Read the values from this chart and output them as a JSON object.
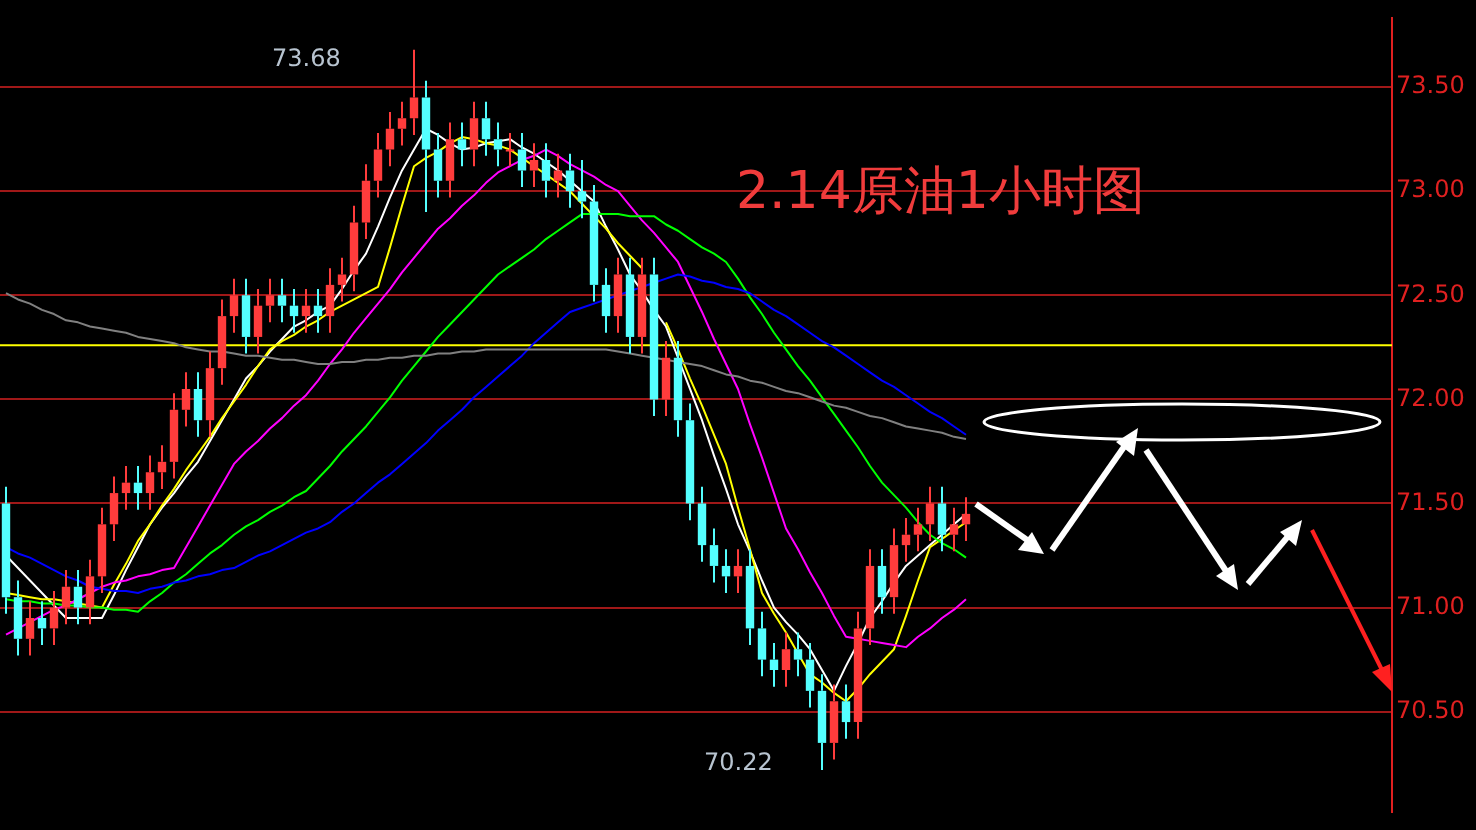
{
  "chart_data": {
    "type": "candlestick",
    "title": "2.14原油1小时图",
    "categories": [
      null,
      null,
      null,
      null,
      null,
      null,
      null,
      null,
      null,
      null,
      null,
      null,
      null,
      null,
      null,
      null,
      null,
      null,
      null,
      null,
      null,
      null,
      null,
      null,
      null,
      null,
      null,
      null,
      null,
      null,
      null,
      null,
      null,
      null,
      null,
      null,
      null,
      null,
      null,
      null,
      null,
      null,
      null,
      null,
      null,
      null,
      null,
      null,
      null,
      null,
      null,
      null,
      null,
      null,
      null,
      null,
      null,
      null,
      null,
      null,
      null,
      null,
      null,
      null,
      null,
      null,
      null,
      null,
      null,
      null,
      null,
      null,
      null,
      null,
      null,
      null,
      null,
      null,
      null,
      null,
      null
    ],
    "ylim": [
      70.02,
      73.83
    ],
    "yticks": [
      {
        "value": 70.5,
        "label": "70.50"
      },
      {
        "value": 71,
        "label": "71.00"
      },
      {
        "value": 71.5,
        "label": "71.50"
      },
      {
        "value": 72,
        "label": "72.00"
      },
      {
        "value": 72.5,
        "label": "72.50"
      },
      {
        "value": 73,
        "label": "73.00"
      },
      {
        "value": 73.5,
        "label": "73.50"
      }
    ],
    "grid": "y",
    "tick_labels": "y",
    "annotations": [
      "73.68",
      "70.22"
    ],
    "ref_lines": [
      {
        "axis": "y",
        "value": 72.26,
        "color": "#ffff00"
      }
    ],
    "ohlc": [
      [
        71.5,
        71.58,
        70.97,
        71.05
      ],
      [
        71.05,
        71.13,
        70.77,
        70.85
      ],
      [
        70.85,
        71.03,
        70.77,
        70.95
      ],
      [
        70.95,
        71.03,
        70.82,
        70.9
      ],
      [
        70.9,
        71.08,
        70.82,
        71.0
      ],
      [
        71.0,
        71.18,
        70.92,
        71.1
      ],
      [
        71.1,
        71.18,
        70.92,
        71.0
      ],
      [
        71.0,
        71.23,
        70.92,
        71.15
      ],
      [
        71.15,
        71.48,
        71.07,
        71.4
      ],
      [
        71.4,
        71.63,
        71.32,
        71.55
      ],
      [
        71.55,
        71.68,
        71.47,
        71.6
      ],
      [
        71.6,
        71.68,
        71.47,
        71.55
      ],
      [
        71.55,
        71.73,
        71.47,
        71.65
      ],
      [
        71.65,
        71.78,
        71.57,
        71.7
      ],
      [
        71.7,
        72.03,
        71.62,
        71.95
      ],
      [
        71.95,
        72.13,
        71.87,
        72.05
      ],
      [
        72.05,
        72.13,
        71.82,
        71.9
      ],
      [
        71.9,
        72.23,
        71.82,
        72.15
      ],
      [
        72.15,
        72.48,
        72.07,
        72.4
      ],
      [
        72.4,
        72.58,
        72.32,
        72.5
      ],
      [
        72.5,
        72.58,
        72.22,
        72.3
      ],
      [
        72.3,
        72.53,
        72.22,
        72.45
      ],
      [
        72.45,
        72.58,
        72.37,
        72.5
      ],
      [
        72.5,
        72.58,
        72.37,
        72.45
      ],
      [
        72.45,
        72.53,
        72.32,
        72.4
      ],
      [
        72.4,
        72.53,
        72.32,
        72.45
      ],
      [
        72.45,
        72.53,
        72.32,
        72.4
      ],
      [
        72.4,
        72.63,
        72.32,
        72.55
      ],
      [
        72.55,
        72.68,
        72.47,
        72.6
      ],
      [
        72.6,
        72.93,
        72.52,
        72.85
      ],
      [
        72.85,
        73.13,
        72.77,
        73.05
      ],
      [
        73.05,
        73.28,
        72.97,
        73.2
      ],
      [
        73.2,
        73.38,
        73.12,
        73.3
      ],
      [
        73.3,
        73.43,
        73.22,
        73.35
      ],
      [
        73.35,
        73.68,
        73.27,
        73.45
      ],
      [
        73.45,
        73.53,
        72.9,
        73.2
      ],
      [
        73.2,
        73.28,
        72.97,
        73.05
      ],
      [
        73.05,
        73.33,
        72.97,
        73.25
      ],
      [
        73.25,
        73.33,
        73.12,
        73.2
      ],
      [
        73.2,
        73.43,
        73.12,
        73.35
      ],
      [
        73.35,
        73.43,
        73.17,
        73.25
      ],
      [
        73.25,
        73.33,
        73.12,
        73.2
      ],
      [
        73.2,
        73.28,
        73.12,
        73.2
      ],
      [
        73.2,
        73.28,
        73.02,
        73.1
      ],
      [
        73.1,
        73.23,
        73.02,
        73.15
      ],
      [
        73.15,
        73.23,
        72.97,
        73.05
      ],
      [
        73.05,
        73.18,
        72.97,
        73.1
      ],
      [
        73.1,
        73.18,
        72.92,
        73.0
      ],
      [
        73.0,
        73.15,
        72.87,
        72.95
      ],
      [
        72.95,
        73.03,
        72.47,
        72.55
      ],
      [
        72.55,
        72.63,
        72.32,
        72.4
      ],
      [
        72.4,
        72.68,
        72.32,
        72.6
      ],
      [
        72.6,
        72.68,
        72.22,
        72.3
      ],
      [
        72.3,
        72.68,
        72.22,
        72.6
      ],
      [
        72.6,
        72.68,
        71.92,
        72.0
      ],
      [
        72.0,
        72.28,
        71.92,
        72.2
      ],
      [
        72.2,
        72.28,
        71.82,
        71.9
      ],
      [
        71.9,
        71.98,
        71.42,
        71.5
      ],
      [
        71.5,
        71.58,
        71.22,
        71.3
      ],
      [
        71.3,
        71.38,
        71.12,
        71.2
      ],
      [
        71.2,
        71.28,
        71.07,
        71.15
      ],
      [
        71.15,
        71.28,
        71.07,
        71.2
      ],
      [
        71.2,
        71.28,
        70.82,
        70.9
      ],
      [
        70.9,
        70.98,
        70.67,
        70.75
      ],
      [
        70.75,
        70.83,
        70.62,
        70.7
      ],
      [
        70.7,
        70.88,
        70.62,
        70.8
      ],
      [
        70.8,
        70.88,
        70.67,
        70.75
      ],
      [
        70.75,
        70.83,
        70.52,
        70.6
      ],
      [
        70.6,
        70.68,
        70.22,
        70.35
      ],
      [
        70.35,
        70.63,
        70.27,
        70.55
      ],
      [
        70.55,
        70.63,
        70.37,
        70.45
      ],
      [
        70.45,
        70.98,
        70.37,
        70.9
      ],
      [
        70.9,
        71.28,
        70.82,
        71.2
      ],
      [
        71.2,
        71.28,
        70.97,
        71.05
      ],
      [
        71.05,
        71.38,
        70.97,
        71.3
      ],
      [
        71.3,
        71.43,
        71.22,
        71.35
      ],
      [
        71.35,
        71.48,
        71.27,
        71.4
      ],
      [
        71.4,
        71.58,
        71.32,
        71.5
      ],
      [
        71.5,
        71.58,
        71.27,
        71.35
      ],
      [
        71.35,
        71.48,
        71.27,
        71.4
      ],
      [
        71.4,
        71.53,
        71.32,
        71.45
      ]
    ],
    "colors": [
      "#54ffff",
      "#54ffff",
      "#ff3c3c",
      "#54ffff",
      "#ff3c3c",
      "#ff3c3c",
      "#54ffff",
      "#ff3c3c",
      "#ff3c3c",
      "#ff3c3c",
      "#ff3c3c",
      "#54ffff",
      "#ff3c3c",
      "#ff3c3c",
      "#ff3c3c",
      "#ff3c3c",
      "#54ffff",
      "#ff3c3c",
      "#ff3c3c",
      "#ff3c3c",
      "#54ffff",
      "#ff3c3c",
      "#ff3c3c",
      "#54ffff",
      "#54ffff",
      "#ff3c3c",
      "#54ffff",
      "#ff3c3c",
      "#ff3c3c",
      "#ff3c3c",
      "#ff3c3c",
      "#ff3c3c",
      "#ff3c3c",
      "#ff3c3c",
      "#ff3c3c",
      "#54ffff",
      "#54ffff",
      "#ff3c3c",
      "#54ffff",
      "#ff3c3c",
      "#54ffff",
      "#54ffff",
      "#ff3c3c",
      "#54ffff",
      "#ff3c3c",
      "#54ffff",
      "#ff3c3c",
      "#54ffff",
      "#54ffff",
      "#54ffff",
      "#54ffff",
      "#ff3c3c",
      "#54ffff",
      "#ff3c3c",
      "#54ffff",
      "#ff3c3c",
      "#54ffff",
      "#54ffff",
      "#54ffff",
      "#54ffff",
      "#54ffff",
      "#ff3c3c",
      "#54ffff",
      "#54ffff",
      "#54ffff",
      "#ff3c3c",
      "#54ffff",
      "#54ffff",
      "#54ffff",
      "#ff3c3c",
      "#54ffff",
      "#ff3c3c",
      "#ff3c3c",
      "#54ffff",
      "#ff3c3c",
      "#ff3c3c",
      "#ff3c3c",
      "#ff3c3c",
      "#54ffff",
      "#ff3c3c",
      "#ff3c3c"
    ],
    "series": [
      {
        "type": "line",
        "color": "#808080",
        "values": [
          72.51,
          72.48,
          72.46,
          72.43,
          72.41,
          72.38,
          72.37,
          72.35,
          72.34,
          72.33,
          72.32,
          72.3,
          72.29,
          72.28,
          72.27,
          72.25,
          72.24,
          72.23,
          72.23,
          72.22,
          72.21,
          72.21,
          72.2,
          72.19,
          72.19,
          72.18,
          72.17,
          72.17,
          72.18,
          72.18,
          72.19,
          72.19,
          72.2,
          72.2,
          72.21,
          72.21,
          72.22,
          72.22,
          72.23,
          72.23,
          72.24,
          72.24,
          72.24,
          72.24,
          72.24,
          72.24,
          72.24,
          72.24,
          72.24,
          72.24,
          72.24,
          72.23,
          72.22,
          72.21,
          72.2,
          72.19,
          72.18,
          72.17,
          72.16,
          72.14,
          72.12,
          72.11,
          72.09,
          72.08,
          72.06,
          72.04,
          72.03,
          72.01,
          71.99,
          71.97,
          71.96,
          71.94,
          71.92,
          71.91,
          71.89,
          71.87,
          71.86,
          71.85,
          71.84,
          71.82,
          71.81
        ]
      },
      {
        "type": "line",
        "color": "#0000ff",
        "values": [
          71.29,
          71.26,
          71.24,
          71.21,
          71.18,
          71.15,
          71.13,
          71.1,
          71.09,
          71.08,
          71.08,
          71.07,
          71.09,
          71.1,
          71.12,
          71.13,
          71.15,
          71.16,
          71.18,
          71.19,
          71.22,
          71.25,
          71.27,
          71.3,
          71.33,
          71.36,
          71.38,
          71.41,
          71.46,
          71.5,
          71.55,
          71.6,
          71.64,
          71.69,
          71.74,
          71.79,
          71.85,
          71.9,
          71.95,
          72.01,
          72.06,
          72.11,
          72.16,
          72.21,
          72.27,
          72.32,
          72.37,
          72.42,
          72.44,
          72.46,
          72.48,
          72.5,
          72.52,
          72.54,
          72.56,
          72.58,
          72.6,
          72.59,
          72.57,
          72.56,
          72.54,
          72.53,
          72.51,
          72.47,
          72.43,
          72.4,
          72.36,
          72.32,
          72.28,
          72.25,
          72.21,
          72.17,
          72.13,
          72.09,
          72.06,
          72.02,
          71.98,
          71.94,
          71.91,
          71.87,
          71.83
        ]
      },
      {
        "type": "line",
        "color": "#00ff00",
        "values": [
          71.04,
          71.03,
          71.03,
          71.02,
          71.02,
          71.01,
          71.01,
          71.0,
          71.0,
          70.99,
          70.99,
          70.98,
          71.03,
          71.07,
          71.12,
          71.16,
          71.21,
          71.26,
          71.3,
          71.35,
          71.39,
          71.42,
          71.46,
          71.49,
          71.53,
          71.56,
          71.62,
          71.68,
          71.75,
          71.81,
          71.87,
          71.94,
          72.01,
          72.09,
          72.16,
          72.23,
          72.3,
          72.36,
          72.42,
          72.48,
          72.54,
          72.6,
          72.64,
          72.68,
          72.72,
          72.77,
          72.81,
          72.85,
          72.89,
          72.89,
          72.89,
          72.89,
          72.88,
          72.88,
          72.88,
          72.84,
          72.81,
          72.77,
          72.73,
          72.7,
          72.66,
          72.58,
          72.49,
          72.41,
          72.32,
          72.24,
          72.16,
          72.09,
          72.01,
          71.93,
          71.85,
          71.77,
          71.68,
          71.6,
          71.54,
          71.48,
          71.41,
          71.35,
          71.31,
          71.28,
          71.24
        ]
      },
      {
        "type": "line",
        "color": "#ff00ff",
        "values": [
          70.87,
          70.9,
          70.93,
          70.96,
          70.99,
          71.01,
          71.04,
          71.07,
          71.1,
          71.12,
          71.13,
          71.15,
          71.16,
          71.18,
          71.19,
          71.29,
          71.39,
          71.49,
          71.59,
          71.69,
          71.75,
          71.8,
          71.86,
          71.91,
          71.97,
          72.02,
          72.09,
          72.17,
          72.24,
          72.32,
          72.39,
          72.46,
          72.53,
          72.61,
          72.68,
          72.75,
          72.82,
          72.87,
          72.93,
          72.98,
          73.04,
          73.09,
          73.12,
          73.15,
          73.17,
          73.2,
          73.17,
          73.13,
          73.1,
          73.07,
          73.03,
          73.0,
          72.93,
          72.86,
          72.8,
          72.73,
          72.66,
          72.54,
          72.42,
          72.29,
          72.17,
          72.05,
          71.88,
          71.72,
          71.55,
          71.38,
          71.28,
          71.17,
          71.07,
          70.96,
          70.86,
          70.85,
          70.84,
          70.83,
          70.82,
          70.81,
          70.86,
          70.9,
          70.95,
          70.99,
          71.04
        ]
      },
      {
        "type": "line",
        "color": "#ffff00",
        "values": [
          71.07,
          71.06,
          71.05,
          71.04,
          71.04,
          71.03,
          71.02,
          71.01,
          71.0,
          71.11,
          71.21,
          71.32,
          71.4,
          71.49,
          71.57,
          71.66,
          71.74,
          71.82,
          71.91,
          71.99,
          72.07,
          72.16,
          72.24,
          72.28,
          72.31,
          72.35,
          72.38,
          72.42,
          72.45,
          72.48,
          72.51,
          72.54,
          72.73,
          72.93,
          73.12,
          73.16,
          73.19,
          73.23,
          73.26,
          73.25,
          73.23,
          73.22,
          73.2,
          73.16,
          73.12,
          73.08,
          73.04,
          73.0,
          72.94,
          72.88,
          72.82,
          72.75,
          72.69,
          72.63,
          null,
          72.37,
          72.24,
          72.1,
          71.97,
          71.83,
          71.69,
          71.48,
          71.28,
          71.07,
          70.97,
          70.88,
          70.78,
          70.68,
          70.64,
          70.59,
          70.55,
          70.61,
          70.68,
          70.74,
          70.8,
          70.96,
          71.13,
          71.29,
          71.33,
          71.37,
          71.41
        ]
      },
      {
        "type": "line",
        "color": "#ffffff",
        "values": [
          71.25,
          71.19,
          71.13,
          71.07,
          71.01,
          70.95,
          70.95,
          70.95,
          70.95,
          71.06,
          71.18,
          71.29,
          71.4,
          71.48,
          71.55,
          71.63,
          71.7,
          71.8,
          71.9,
          72.0,
          72.1,
          72.16,
          72.23,
          72.29,
          72.35,
          72.38,
          72.42,
          72.45,
          72.53,
          72.62,
          72.7,
          72.83,
          72.97,
          73.1,
          73.2,
          73.3,
          73.27,
          73.23,
          73.2,
          73.21,
          73.23,
          73.24,
          73.25,
          73.21,
          73.18,
          73.14,
          73.1,
          73.05,
          73.0,
          72.95,
          72.83,
          72.72,
          72.6,
          72.52,
          72.43,
          72.35,
          72.2,
          72.05,
          71.9,
          71.73,
          71.57,
          71.4,
          71.27,
          71.13,
          71.0,
          70.93,
          70.87,
          70.8,
          70.7,
          70.6,
          70.72,
          70.83,
          70.95,
          71.03,
          71.12,
          71.2,
          71.25,
          71.3,
          71.35,
          71.4,
          71.45
        ]
      }
    ]
  }
}
